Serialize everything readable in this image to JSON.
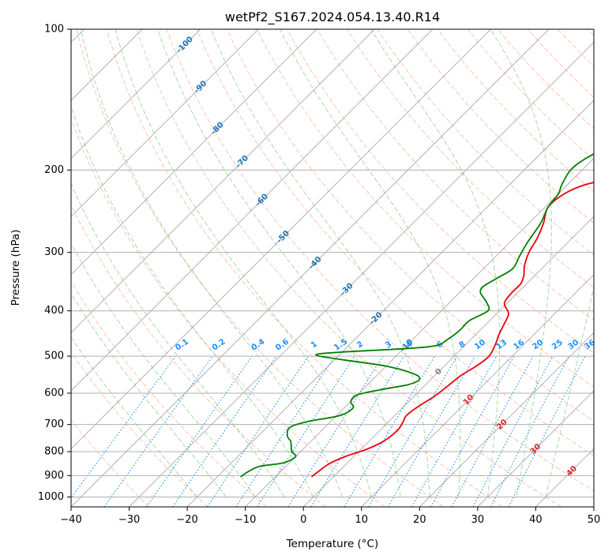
{
  "chart_data": {
    "type": "line",
    "subtype": "skew-t log-p diagram",
    "title": "wetPf2_S167.2024.054.13.40.R14",
    "xlabel": "Temperature (°C)",
    "ylabel": "Pressure (hPa)",
    "xlim": [
      -40,
      50
    ],
    "ylim": [
      1050,
      100
    ],
    "y_scale": "log",
    "x_ticks": [
      -40,
      -30,
      -20,
      -10,
      0,
      10,
      20,
      30,
      40,
      50
    ],
    "x_tick_labels": [
      "−40",
      "−30",
      "−20",
      "−10",
      "0",
      "10",
      "20",
      "30",
      "40",
      "50"
    ],
    "y_ticks": [
      100,
      200,
      300,
      400,
      500,
      600,
      700,
      800,
      900,
      1000
    ],
    "y_tick_labels": [
      "100",
      "200",
      "300",
      "400",
      "500",
      "600",
      "700",
      "800",
      "900",
      "1000"
    ],
    "grid": true,
    "isotherm_labels": [
      "-100",
      "-90",
      "-80",
      "-70",
      "-60",
      "-50",
      "-40",
      "-30",
      "-20",
      "-10",
      "0",
      "10",
      "20",
      "30",
      "40"
    ],
    "mixing_ratio_labels": [
      "0.1",
      "0.2",
      "0.4",
      "0.6",
      "1",
      "1.5",
      "2",
      "3",
      "4",
      "6",
      "8",
      "10",
      "13",
      "16",
      "20",
      "25",
      "30",
      "36"
    ],
    "colors": {
      "temperature": "#e8000b",
      "dewpoint": "#008000",
      "isotherm": "#808080",
      "dry_adiabat": "#ff7f50",
      "moist_adiabat": "#2ca02c",
      "mixing_ratio": "#1e90ff",
      "isotherm_label_cold": "#1f77b4",
      "isotherm_label_warm": "#d62728"
    },
    "series": [
      {
        "key": "temperature",
        "points": [
          [
            -3.8,
            905
          ],
          [
            -3.5,
            880
          ],
          [
            -3.0,
            850
          ],
          [
            -1.5,
            820
          ],
          [
            1.0,
            790
          ],
          [
            2.5,
            760
          ],
          [
            3.0,
            720
          ],
          [
            2.5,
            690
          ],
          [
            2.0,
            670
          ],
          [
            2.5,
            640
          ],
          [
            3.5,
            610
          ],
          [
            4.0,
            580
          ],
          [
            4.5,
            550
          ],
          [
            5.5,
            525
          ],
          [
            6.0,
            500
          ],
          [
            5.0,
            470
          ],
          [
            4.0,
            450
          ],
          [
            3.0,
            425
          ],
          [
            2.0,
            405
          ],
          [
            -0.5,
            385
          ],
          [
            -1.0,
            365
          ],
          [
            -1.0,
            350
          ],
          [
            -2.0,
            335
          ],
          [
            -3.5,
            320
          ],
          [
            -5.0,
            300
          ],
          [
            -6.0,
            280
          ],
          [
            -7.5,
            260
          ],
          [
            -9.5,
            240
          ],
          [
            -9.0,
            225
          ],
          [
            -7.0,
            215
          ],
          [
            -3.0,
            208
          ],
          [
            2.0,
            200
          ],
          [
            5.0,
            190
          ],
          [
            7.0,
            180
          ],
          [
            8.5,
            170
          ],
          [
            10.0,
            160
          ],
          [
            14.0,
            150
          ],
          [
            17.5,
            140
          ],
          [
            20.0,
            133
          ],
          [
            21.5,
            127
          ],
          [
            21.5,
            121
          ],
          [
            20.0,
            115
          ],
          [
            19.5,
            110
          ],
          [
            21.0,
            106
          ],
          [
            23.5,
            102
          ],
          [
            24.5,
            100
          ]
        ]
      },
      {
        "key": "dewpoint",
        "points": [
          [
            -16.0,
            905
          ],
          [
            -15.5,
            880
          ],
          [
            -14.5,
            860
          ],
          [
            -11.0,
            845
          ],
          [
            -10.0,
            820
          ],
          [
            -11.5,
            800
          ],
          [
            -12.5,
            780
          ],
          [
            -13.5,
            760
          ],
          [
            -15.0,
            740
          ],
          [
            -16.0,
            710
          ],
          [
            -14.0,
            690
          ],
          [
            -9.5,
            670
          ],
          [
            -8.5,
            645
          ],
          [
            -10.0,
            625
          ],
          [
            -10.0,
            605
          ],
          [
            -7.0,
            590
          ],
          [
            -3.0,
            575
          ],
          [
            -2.0,
            560
          ],
          [
            -4.0,
            545
          ],
          [
            -10.0,
            525
          ],
          [
            -18.0,
            510
          ],
          [
            -24.0,
            497
          ],
          [
            -20.0,
            490
          ],
          [
            -10.0,
            482
          ],
          [
            -5.0,
            475
          ],
          [
            -4.0,
            460
          ],
          [
            -3.5,
            440
          ],
          [
            -3.5,
            420
          ],
          [
            -2.0,
            400
          ],
          [
            -3.5,
            385
          ],
          [
            -5.0,
            375
          ],
          [
            -6.5,
            365
          ],
          [
            -7.0,
            355
          ],
          [
            -6.0,
            340
          ],
          [
            -5.0,
            325
          ],
          [
            -6.0,
            305
          ],
          [
            -7.0,
            285
          ],
          [
            -8.0,
            260
          ],
          [
            -9.5,
            240
          ],
          [
            -10.0,
            225
          ],
          [
            -11.0,
            215
          ],
          [
            -12.0,
            200
          ],
          [
            -11.5,
            190
          ],
          [
            -10.0,
            180
          ],
          [
            -8.5,
            170
          ],
          [
            -8.0,
            160
          ],
          [
            -8.5,
            150
          ],
          [
            -8.0,
            140
          ],
          [
            -7.0,
            130
          ],
          [
            -6.0,
            120
          ],
          [
            -4.0,
            112
          ],
          [
            -3.0,
            106
          ],
          [
            -3.5,
            100
          ]
        ]
      }
    ]
  }
}
